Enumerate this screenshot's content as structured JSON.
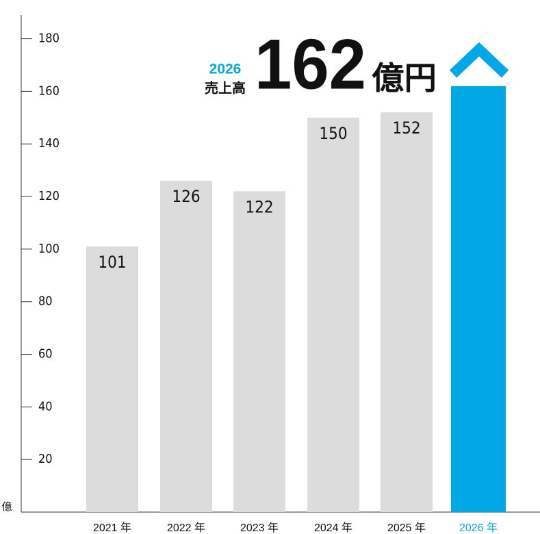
{
  "chart_data": {
    "type": "bar",
    "y_unit": "億",
    "annotation": {
      "year": "2026",
      "label": "売上高",
      "unit": "億円"
    },
    "categories": [
      "2021 年",
      "2022 年",
      "2023 年",
      "2024 年",
      "2025 年",
      "2026 年"
    ],
    "values": [
      101,
      126,
      122,
      150,
      152,
      162
    ],
    "colors": [
      "#dcdcdc",
      "#dcdcdc",
      "#dcdcdc",
      "#dcdcdc",
      "#dcdcdc",
      "#00a8e8"
    ],
    "ylim": [
      0,
      189
    ],
    "yticks": [
      20,
      40,
      60,
      80,
      100,
      120,
      140,
      160,
      180
    ]
  }
}
